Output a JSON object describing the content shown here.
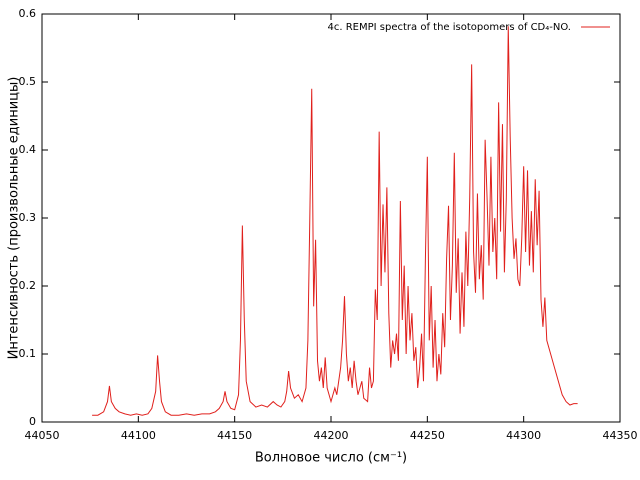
{
  "chart_data": {
    "type": "line",
    "x_label": "Волновое число (см⁻¹)",
    "y_label": "Интенсивность (произвольные единицы)",
    "xlim": [
      44050,
      44350
    ],
    "xticks": [
      44050,
      44100,
      44150,
      44200,
      44250,
      44300,
      44350
    ],
    "ylim": [
      0,
      0.6
    ],
    "yticks": [
      0,
      0.1,
      0.2,
      0.3,
      0.4,
      0.5,
      0.6
    ],
    "legend": "top-right",
    "grid": false,
    "x": [
      44076,
      44079,
      44082,
      44084,
      44085,
      44086,
      44088,
      44090,
      44093,
      44096,
      44099,
      44102,
      44105,
      44107,
      44109,
      44110,
      44111,
      44112,
      44114,
      44117,
      44121,
      44125,
      44129,
      44133,
      44137,
      44140,
      44142,
      44144,
      44145,
      44146,
      44148,
      44150,
      44152,
      44153,
      44154,
      44155,
      44156,
      44158,
      44161,
      44164,
      44167,
      44170,
      44172,
      44174,
      44176,
      44177,
      44178,
      44179,
      44181,
      44183,
      44185,
      44187,
      44188,
      44189,
      44190,
      44191,
      44192,
      44193,
      44194,
      44195,
      44196,
      44197,
      44198,
      44199,
      44200,
      44202,
      44203,
      44205,
      44206,
      44207,
      44208,
      44209,
      44210,
      44211,
      44212,
      44213,
      44214,
      44216,
      44217,
      44219,
      44220,
      44221,
      44222,
      44223,
      44224,
      44225,
      44226,
      44227,
      44228,
      44229,
      44230,
      44231,
      44232,
      44233,
      44234,
      44235,
      44236,
      44237,
      44238,
      44239,
      44240,
      44241,
      44242,
      44243,
      44244,
      44245,
      44246,
      44247,
      44248,
      44249,
      44250,
      44251,
      44252,
      44253,
      44254,
      44255,
      44256,
      44257,
      44258,
      44259,
      44260,
      44261,
      44262,
      44263,
      44264,
      44265,
      44266,
      44267,
      44268,
      44269,
      44270,
      44271,
      44272,
      44273,
      44274,
      44275,
      44276,
      44277,
      44278,
      44279,
      44280,
      44281,
      44282,
      44283,
      44284,
      44285,
      44286,
      44287,
      44288,
      44289,
      44290,
      44291,
      44292,
      44293,
      44294,
      44295,
      44296,
      44297,
      44298,
      44299,
      44300,
      44301,
      44302,
      44303,
      44304,
      44305,
      44306,
      44307,
      44308,
      44309,
      44310,
      44311,
      44312,
      44314,
      44316,
      44318,
      44320,
      44322,
      44324,
      44326,
      44328
    ],
    "series": [
      {
        "name": "4c. REMPI spectra of the isotopomers of CD₄-NO.",
        "color": "#e0201c",
        "values": [
          0.01,
          0.01,
          0.015,
          0.03,
          0.053,
          0.03,
          0.02,
          0.015,
          0.012,
          0.01,
          0.012,
          0.01,
          0.012,
          0.02,
          0.045,
          0.098,
          0.06,
          0.03,
          0.015,
          0.01,
          0.01,
          0.012,
          0.01,
          0.012,
          0.012,
          0.015,
          0.02,
          0.03,
          0.045,
          0.03,
          0.02,
          0.018,
          0.04,
          0.12,
          0.289,
          0.15,
          0.06,
          0.03,
          0.022,
          0.025,
          0.022,
          0.03,
          0.025,
          0.022,
          0.03,
          0.045,
          0.075,
          0.05,
          0.035,
          0.04,
          0.03,
          0.05,
          0.12,
          0.3,
          0.49,
          0.17,
          0.268,
          0.09,
          0.06,
          0.08,
          0.05,
          0.095,
          0.05,
          0.04,
          0.03,
          0.05,
          0.04,
          0.08,
          0.12,
          0.185,
          0.1,
          0.06,
          0.08,
          0.05,
          0.09,
          0.06,
          0.04,
          0.06,
          0.035,
          0.03,
          0.08,
          0.05,
          0.06,
          0.195,
          0.15,
          0.427,
          0.2,
          0.32,
          0.22,
          0.345,
          0.16,
          0.08,
          0.12,
          0.1,
          0.13,
          0.09,
          0.325,
          0.15,
          0.23,
          0.1,
          0.2,
          0.12,
          0.16,
          0.09,
          0.11,
          0.05,
          0.08,
          0.13,
          0.06,
          0.24,
          0.39,
          0.12,
          0.2,
          0.08,
          0.15,
          0.06,
          0.1,
          0.07,
          0.16,
          0.11,
          0.24,
          0.318,
          0.15,
          0.23,
          0.396,
          0.19,
          0.27,
          0.13,
          0.22,
          0.14,
          0.28,
          0.2,
          0.33,
          0.526,
          0.25,
          0.19,
          0.336,
          0.21,
          0.26,
          0.18,
          0.415,
          0.33,
          0.23,
          0.39,
          0.25,
          0.3,
          0.21,
          0.47,
          0.28,
          0.438,
          0.22,
          0.33,
          0.582,
          0.42,
          0.3,
          0.24,
          0.27,
          0.21,
          0.2,
          0.27,
          0.376,
          0.25,
          0.37,
          0.23,
          0.31,
          0.22,
          0.357,
          0.26,
          0.34,
          0.18,
          0.14,
          0.183,
          0.12,
          0.1,
          0.08,
          0.06,
          0.04,
          0.03,
          0.025,
          0.027,
          0.027
        ]
      }
    ]
  }
}
